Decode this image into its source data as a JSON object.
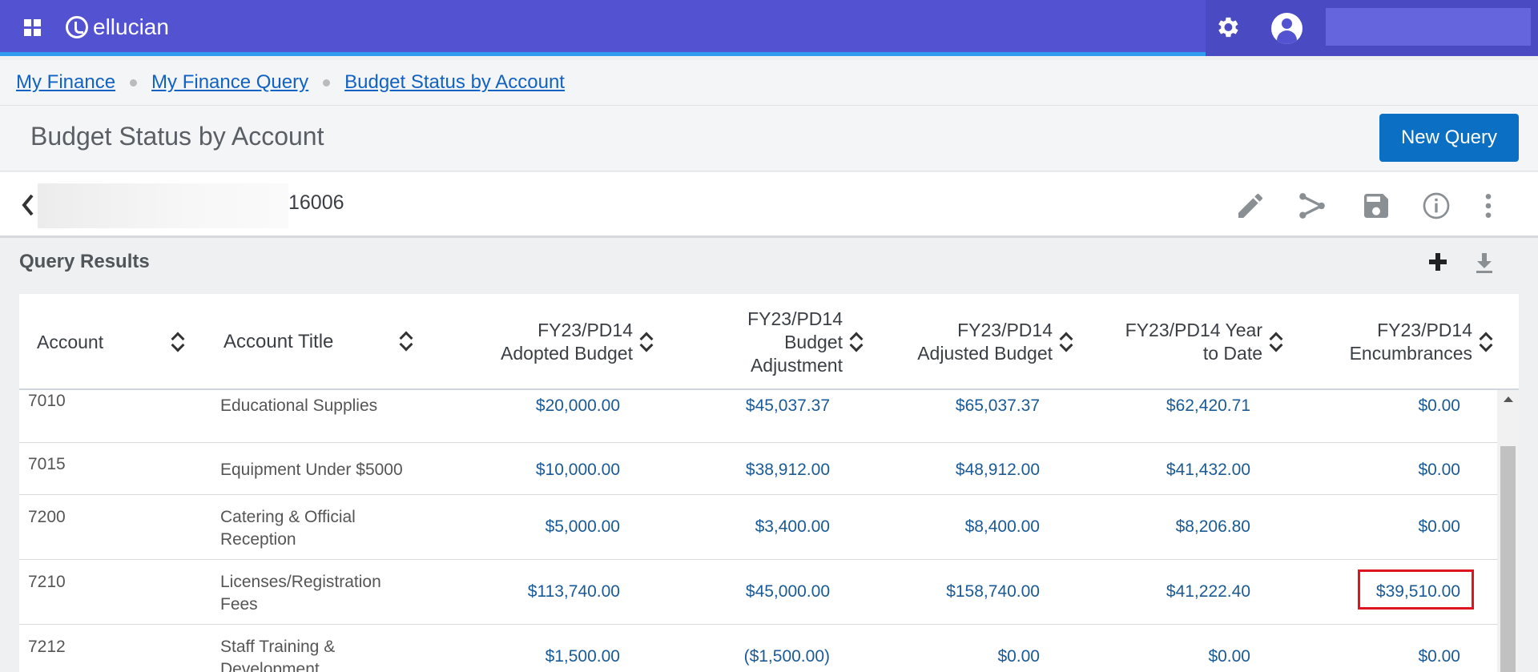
{
  "header": {
    "logo_text": "ellucian",
    "icons": [
      "apps-grid-icon",
      "gear-icon",
      "user-avatar-icon"
    ]
  },
  "breadcrumb": [
    "My Finance",
    "My Finance Query",
    "Budget Status by Account"
  ],
  "page": {
    "title": "Budget Status by Account",
    "new_query_label": "New Query"
  },
  "query": {
    "id_suffix": "16006",
    "icons": [
      "back-chevron-icon",
      "edit-pencil-icon",
      "share-icon",
      "save-icon",
      "info-icon",
      "more-vertical-icon"
    ]
  },
  "results": {
    "label": "Query Results",
    "columns": {
      "account": "Account",
      "title": "Account Title",
      "adopted_l1": "FY23/PD14",
      "adopted_l2": "Adopted Budget",
      "adjustment_l1": "FY23/PD14",
      "adjustment_l2": "Budget",
      "adjustment_l3": "Adjustment",
      "adjusted_l1": "FY23/PD14",
      "adjusted_l2": "Adjusted Budget",
      "ytd_l1": "FY23/PD14 Year",
      "ytd_l2": "to Date",
      "enc_l1": "FY23/PD14",
      "enc_l2": "Encumbrances"
    },
    "rows": [
      {
        "account": "7010",
        "title_l1": "Educational Supplies",
        "title_l2": "",
        "adopted": "$20,000.00",
        "adjustment": "$45,037.37",
        "adjusted": "$65,037.37",
        "ytd": "$62,420.71",
        "encumbrances": "$0.00"
      },
      {
        "account": "7015",
        "title_l1": "Equipment Under $5000",
        "title_l2": "",
        "adopted": "$10,000.00",
        "adjustment": "$38,912.00",
        "adjusted": "$48,912.00",
        "ytd": "$41,432.00",
        "encumbrances": "$0.00"
      },
      {
        "account": "7200",
        "title_l1": "Catering & Official",
        "title_l2": "Reception",
        "adopted": "$5,000.00",
        "adjustment": "$3,400.00",
        "adjusted": "$8,400.00",
        "ytd": "$8,206.80",
        "encumbrances": "$0.00"
      },
      {
        "account": "7210",
        "title_l1": "Licenses/Registration",
        "title_l2": "Fees",
        "adopted": "$113,740.00",
        "adjustment": "$45,000.00",
        "adjusted": "$158,740.00",
        "ytd": "$41,222.40",
        "encumbrances": "$39,510.00"
      },
      {
        "account": "7212",
        "title_l1": "Staff Training &",
        "title_l2": "Development",
        "adopted": "$1,500.00",
        "adjustment": "($1,500.00)",
        "adjusted": "$0.00",
        "ytd": "$0.00",
        "encumbrances": "$0.00"
      }
    ],
    "highlight_color": "#e0141e"
  },
  "colors": {
    "topbar": "#5353d1",
    "accent_line": "#2f9cf0",
    "button": "#0b6fc4",
    "link": "#1162c4",
    "amount": "#1a5a96"
  }
}
